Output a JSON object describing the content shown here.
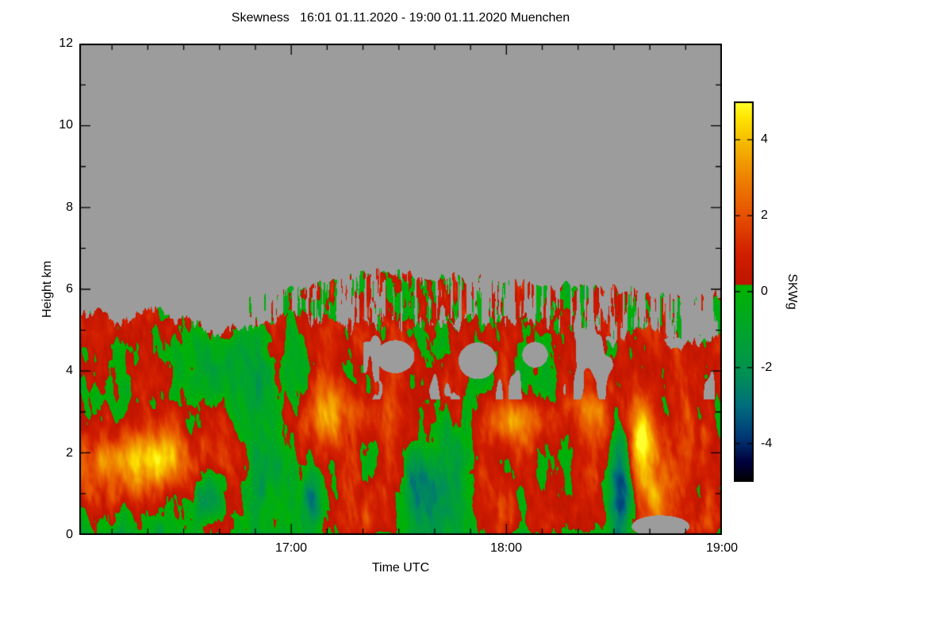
{
  "title": "Skewness   16:01 01.11.2020 - 19:00 01.11.2020 Muenchen",
  "axes": {
    "xlabel": "Time UTC",
    "ylabel": "Height km",
    "x_tick_labels": [
      "17:00",
      "18:00",
      "19:00"
    ],
    "y_tick_labels": [
      "12",
      "10",
      "8",
      "6",
      "4",
      "2",
      "0"
    ]
  },
  "colorbar": {
    "title": "SKWg",
    "tick_labels": [
      "4",
      "2",
      "0",
      "-2",
      "-4"
    ]
  },
  "chart_data": {
    "type": "heatmap",
    "title": "Skewness 16:01 01.11.2020 - 19:00 01.11.2020 Muenchen",
    "site": "Muenchen",
    "time_start_utc": "16:01 01.11.2020",
    "time_end_utc": "19:00 01.11.2020",
    "xlabel": "Time UTC",
    "ylabel": "Height km",
    "x_minutes_after_1600": [
      1,
      180
    ],
    "x_tick_minutes": [
      60,
      120,
      180
    ],
    "x_tick_labels": [
      "17:00",
      "18:00",
      "19:00"
    ],
    "x_minor_tick_step_minutes": 10,
    "y_range_km": [
      0,
      12
    ],
    "y_major_ticks_km": [
      0,
      2,
      4,
      6,
      8,
      10,
      12
    ],
    "y_minor_tick_step_km": 1,
    "value_name": "SKWg",
    "value_range": [
      -5,
      5
    ],
    "colorbar_tick_values": [
      4,
      2,
      0,
      -2,
      -4
    ],
    "no_data_color": "#9c9c9c",
    "colormap_stops": [
      [
        -5.0,
        "#000000"
      ],
      [
        -4.5,
        "#00003c"
      ],
      [
        -3.8,
        "#003a78"
      ],
      [
        -3.0,
        "#006e7d"
      ],
      [
        -2.2,
        "#009055"
      ],
      [
        -1.2,
        "#00a232"
      ],
      [
        0.16,
        "#00b400"
      ],
      [
        0.2,
        "#be1400"
      ],
      [
        1.0,
        "#d21e00"
      ],
      [
        2.0,
        "#e65000"
      ],
      [
        3.0,
        "#ef8200"
      ],
      [
        4.0,
        "#f6be00"
      ],
      [
        4.6,
        "#ffe600"
      ],
      [
        5.0,
        "#ffff30"
      ]
    ],
    "features": {
      "description": "Turbulent skewness field below ~5 km cloud top; grey = no data above. Detached speckled cloud layer between ~4.7 and 6.4 km appearing after ~16:47 and slowly descending toward 19:00. Strong positive (orange/yellow) plumes near 16:05-16:35 at 1-2.5 km, 17:10 at 3 km, 18:00-18:25 at 2.5-3 km, 18:35-18:45 at 1-3 km. Strong negative (blue/black) streaks near 16:37, 17:06, 17:35 and 18:30 below 2.5 km.",
      "cloud_top_km": {
        "base": 5.05,
        "noise_amp": 0.38
      },
      "upper_band": {
        "start_minute": 46,
        "rise_end_minute": 85,
        "top_km_start": 5.7,
        "top_km_peak": 6.45,
        "top_km_end": 5.8,
        "bottom_km": 4.65
      },
      "hotspots": [
        {
          "t": 13,
          "h": 1.7,
          "st": 15,
          "sh": 0.85,
          "amp": 3.4
        },
        {
          "t": 26,
          "h": 2.0,
          "st": 10,
          "sh": 0.6,
          "amp": 1.6
        },
        {
          "t": 37,
          "h": 0.9,
          "st": 3,
          "sh": 0.7,
          "amp": -3.2
        },
        {
          "t": 53,
          "h": 1.6,
          "st": 9,
          "sh": 1.4,
          "amp": -1.7
        },
        {
          "t": 66,
          "h": 0.8,
          "st": 3.5,
          "sh": 0.9,
          "amp": -3.0
        },
        {
          "t": 72,
          "h": 3.1,
          "st": 7,
          "sh": 0.8,
          "amp": 2.8
        },
        {
          "t": 96,
          "h": 1.1,
          "st": 6,
          "sh": 1.0,
          "amp": -2.2
        },
        {
          "t": 104,
          "h": 1.6,
          "st": 8,
          "sh": 1.3,
          "amp": -1.5
        },
        {
          "t": 124,
          "h": 2.8,
          "st": 9,
          "sh": 0.55,
          "amp": 2.4
        },
        {
          "t": 143,
          "h": 3.0,
          "st": 6,
          "sh": 0.5,
          "amp": 2.0
        },
        {
          "t": 152,
          "h": 1.4,
          "st": 3,
          "sh": 1.2,
          "amp": -5.0
        },
        {
          "t": 158,
          "h": 2.2,
          "st": 4,
          "sh": 1.0,
          "amp": 4.6
        },
        {
          "t": 163,
          "h": 1.0,
          "st": 4,
          "sh": 0.8,
          "amp": 2.2
        },
        {
          "t": 47,
          "h": 4.2,
          "st": 20,
          "sh": 0.9,
          "amp": -1.0
        }
      ],
      "no_data_holes": [
        {
          "t": 89,
          "h": 4.35,
          "st": 6,
          "sh": 0.45
        },
        {
          "t": 112,
          "h": 4.25,
          "st": 6,
          "sh": 0.5
        },
        {
          "t": 128,
          "h": 4.4,
          "st": 4,
          "sh": 0.35
        },
        {
          "t": 163,
          "h": 0.2,
          "st": 9,
          "sh": 0.3
        }
      ]
    }
  }
}
